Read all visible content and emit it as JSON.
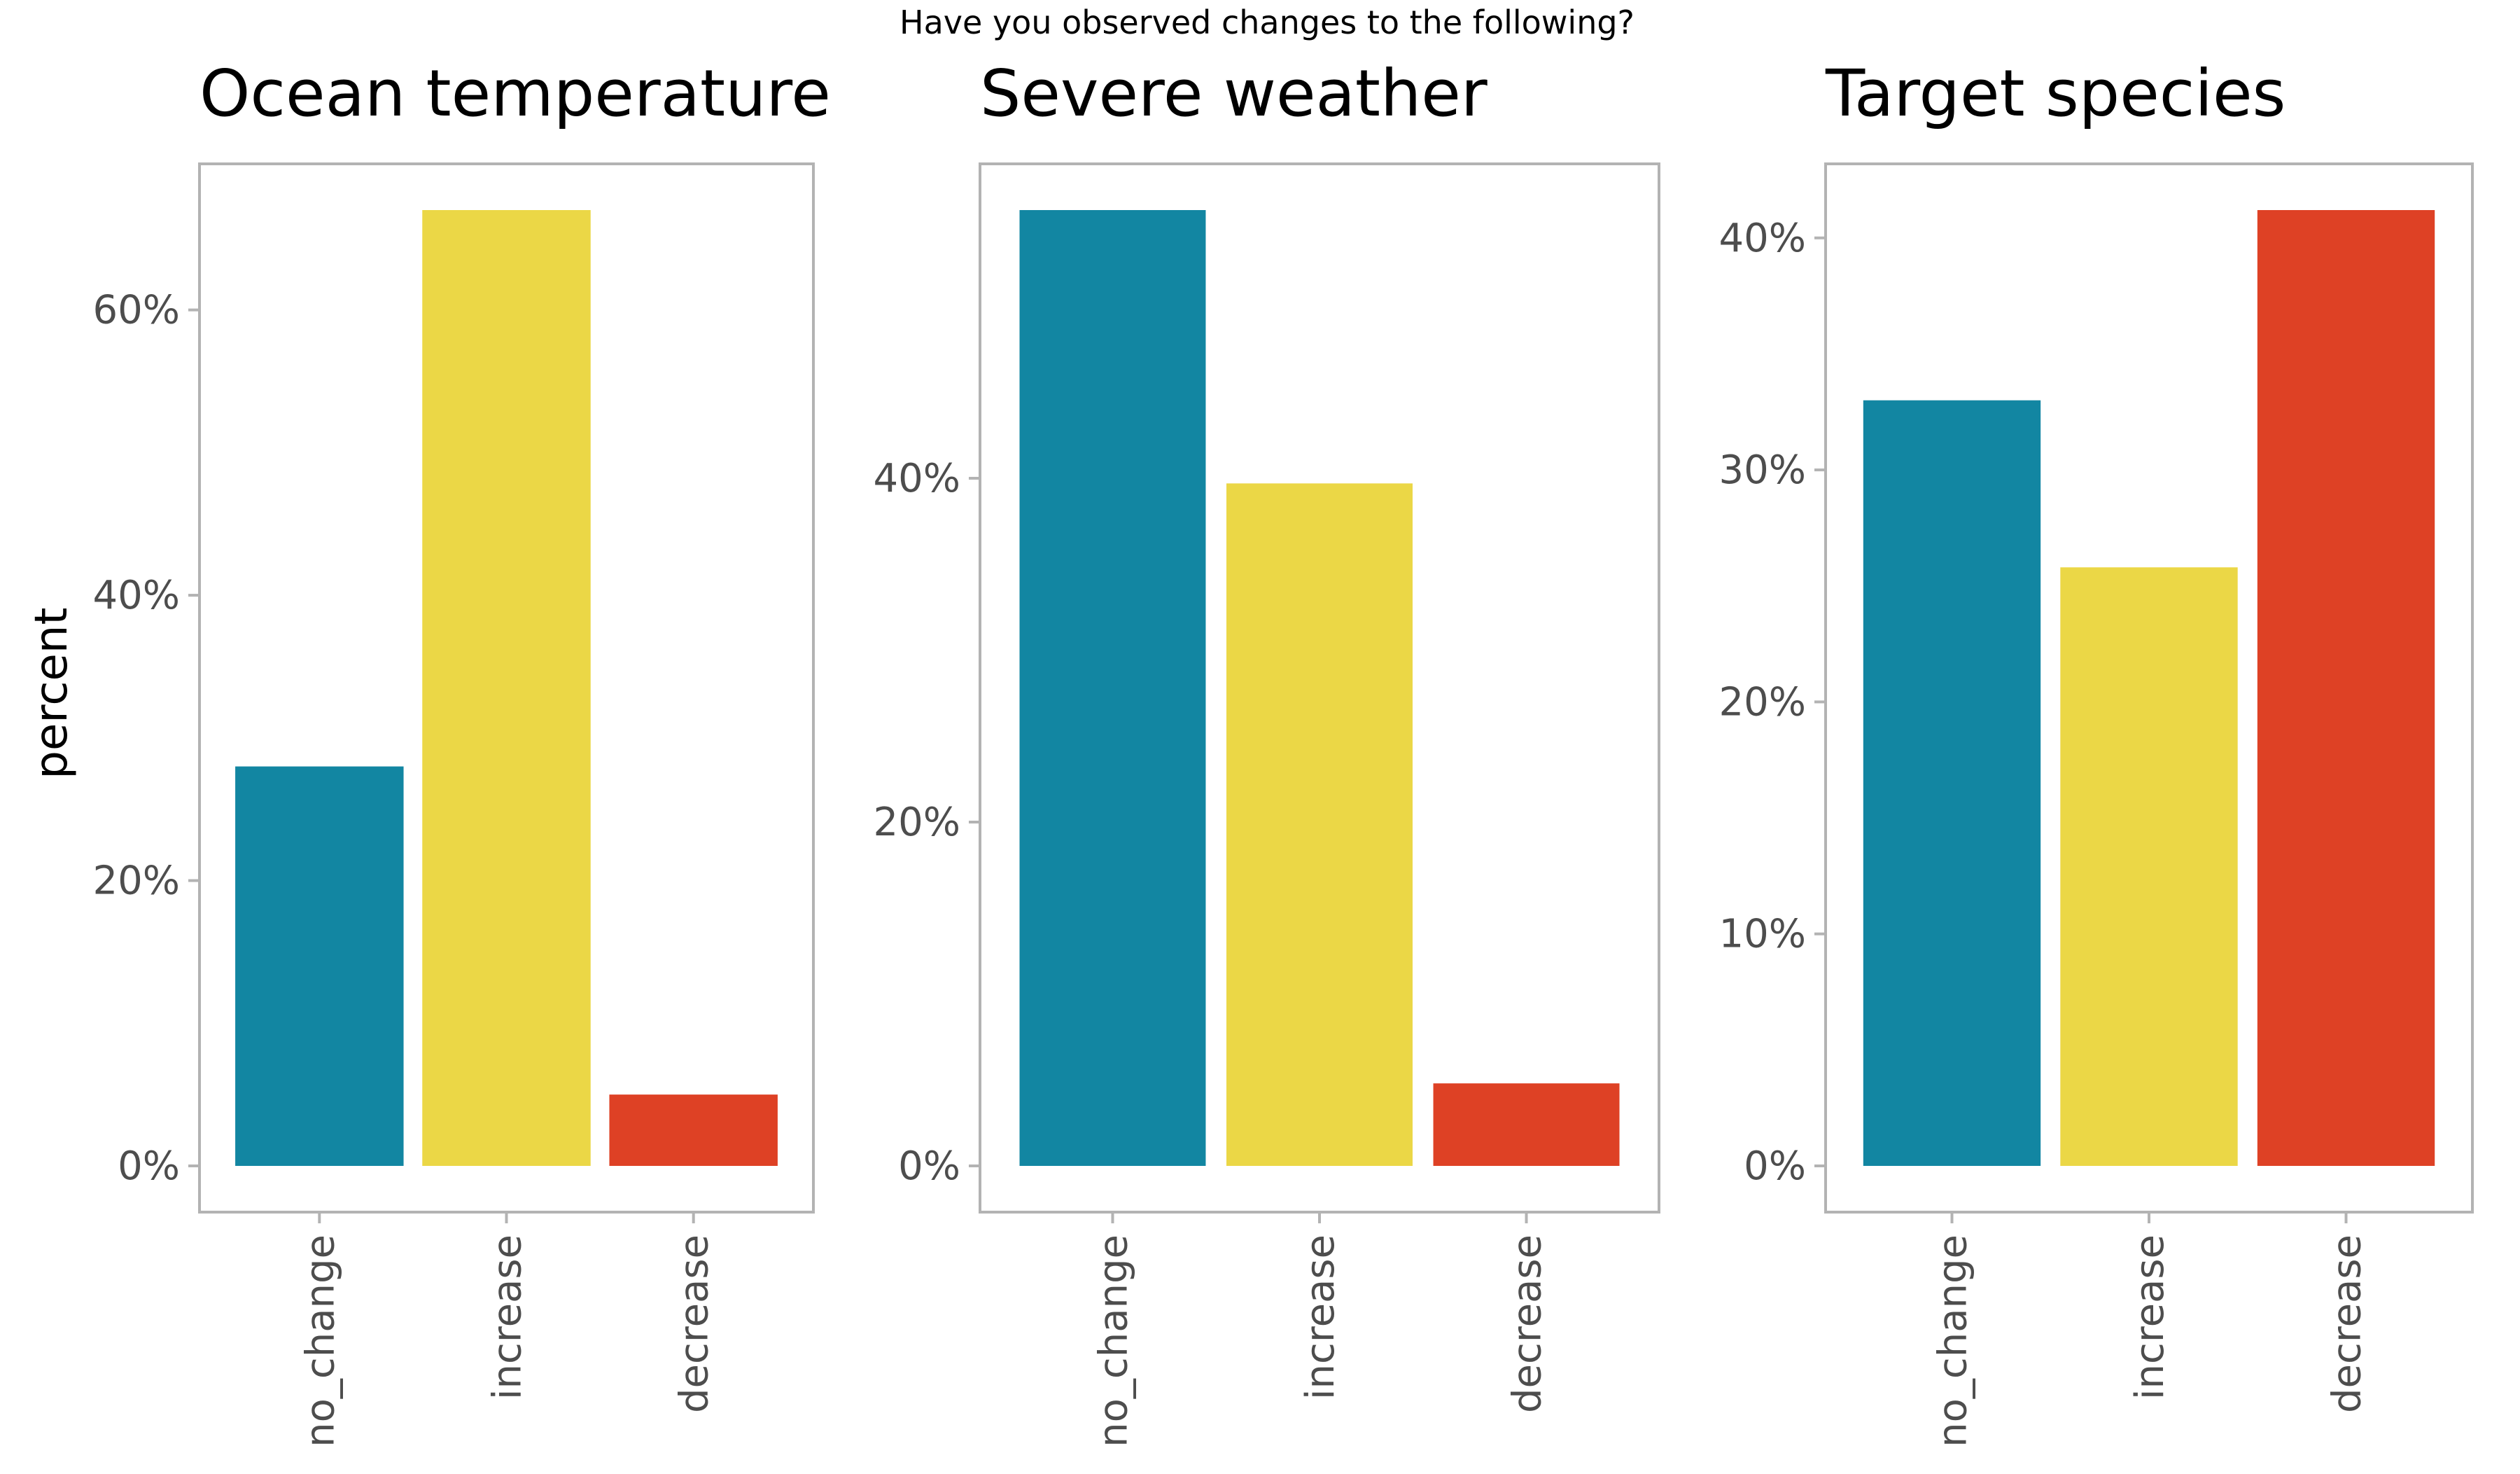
{
  "figure": {
    "title": "Have you observed changes to the following?",
    "ylabel": "percent"
  },
  "colors": {
    "no_change": "#1286A2",
    "increase": "#EBD746",
    "decrease": "#DE4125",
    "panel_border": "#B3B3B3",
    "tick_text": "#4D4D4D",
    "title_text": "#000000"
  },
  "chart_data": [
    {
      "type": "bar",
      "title": "Ocean temperature",
      "categories": [
        "no_change",
        "increase",
        "decrease"
      ],
      "values": [
        28,
        67,
        5
      ],
      "ylim": [
        0,
        70
      ],
      "yticks": [
        0,
        20,
        40,
        60
      ],
      "ytick_labels": [
        "0%",
        "20%",
        "40%",
        "60%"
      ],
      "ylabel": "percent",
      "grid": false
    },
    {
      "type": "bar",
      "title": "Severe weather",
      "categories": [
        "no_change",
        "increase",
        "decrease"
      ],
      "values": [
        55.6,
        39.7,
        4.8
      ],
      "ylim": [
        0,
        58
      ],
      "yticks": [
        0,
        20,
        40
      ],
      "ytick_labels": [
        "0%",
        "20%",
        "40%"
      ],
      "grid": false
    },
    {
      "type": "bar",
      "title": "Target species",
      "categories": [
        "no_change",
        "increase",
        "decrease"
      ],
      "values": [
        33,
        25.8,
        41.2
      ],
      "ylim": [
        0,
        43
      ],
      "yticks": [
        0,
        10,
        20,
        30,
        40
      ],
      "ytick_labels": [
        "0%",
        "10%",
        "20%",
        "30%",
        "40%"
      ],
      "grid": false
    }
  ]
}
